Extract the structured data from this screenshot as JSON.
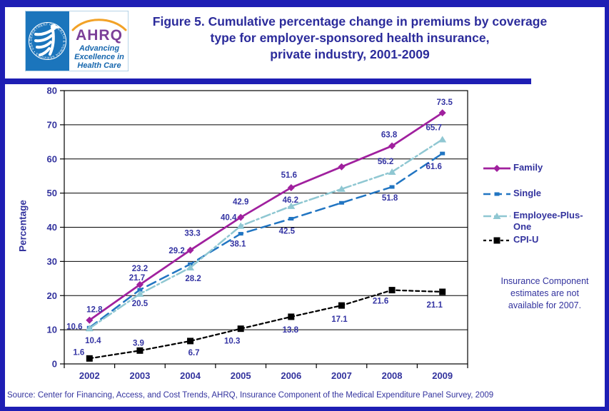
{
  "page": {
    "border_color": "#1e1eb4",
    "background": "#ffffff"
  },
  "header": {
    "logo": {
      "hhs_seal_text": "DEPARTMENT OF HEALTH & HUMAN SERVICES • USA •",
      "ahrq_name": "AHRQ",
      "tagline_lines": [
        "Advancing",
        "Excellence in",
        "Health Care"
      ],
      "colors": {
        "hhs_blue": "#1b75bc",
        "ahrq_purple": "#7b3f98",
        "arc_orange": "#f2a227",
        "tagline_blue": "#1566ad"
      }
    },
    "title_lines": [
      "Figure 5. Cumulative percentage change in premiums by coverage",
      "type for employer-sponsored health insurance,",
      "private industry, 2001-2009"
    ],
    "title_color": "#2b2b9b"
  },
  "chart_data": {
    "type": "line",
    "title": "Cumulative percentage change in premiums by coverage type for employer-sponsored health insurance, private industry, 2001-2009",
    "xlabel": "",
    "ylabel": "Percentage",
    "ylim": [
      0,
      80
    ],
    "ytick_interval": 10,
    "grid": "horizontal",
    "legend_position": "right",
    "categories": [
      "2002",
      "2003",
      "2004",
      "2005",
      "2006",
      "2007",
      "2008",
      "2009"
    ],
    "series": [
      {
        "name": "Family",
        "color": "#a0209e",
        "line_style": "solid",
        "marker": "diamond",
        "values": [
          12.8,
          23.2,
          33.3,
          42.9,
          51.6,
          null,
          63.8,
          73.5
        ]
      },
      {
        "name": "Single",
        "color": "#2175c2",
        "line_style": "dashed",
        "marker": "square",
        "values": [
          10.6,
          21.7,
          29.2,
          38.1,
          42.5,
          null,
          51.8,
          61.6
        ]
      },
      {
        "name": "Employee-Plus-One",
        "color": "#8fc7d2",
        "line_style": "dash-dot",
        "marker": "triangle",
        "values": [
          10.4,
          20.5,
          28.2,
          40.4,
          46.2,
          null,
          56.2,
          65.7
        ]
      },
      {
        "name": "CPI-U",
        "color": "#000000",
        "line_style": "dashed",
        "marker": "filled-square",
        "values": [
          1.6,
          3.9,
          6.7,
          10.3,
          13.8,
          17.1,
          21.6,
          21.1
        ]
      }
    ],
    "note_lines": [
      "Insurance Component",
      "estimates are not",
      "available for 2007."
    ],
    "label_color": "#3434a3",
    "axis_text_color": "#33339e"
  },
  "footer": {
    "source": "Source: Center for Financing, Access, and Cost Trends, AHRQ, Insurance Component of the Medical Expenditure Panel Survey, 2009"
  }
}
